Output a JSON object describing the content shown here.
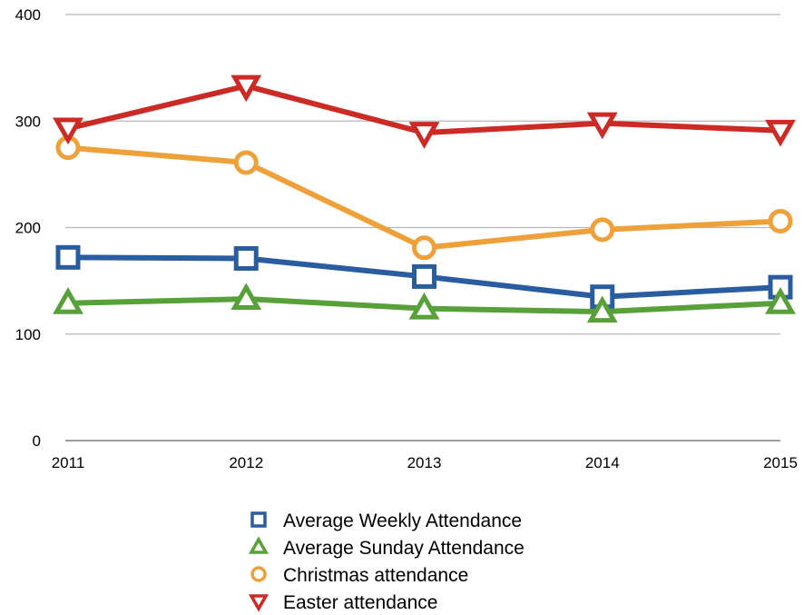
{
  "chart_data": {
    "type": "line",
    "title": "",
    "xlabel": "",
    "ylabel": "",
    "categories": [
      "2011",
      "2012",
      "2013",
      "2014",
      "2015"
    ],
    "ylim": [
      0,
      400
    ],
    "yticks": [
      "0",
      "100",
      "200",
      "300",
      "400"
    ],
    "grid": true,
    "legend_position": "bottom",
    "series": [
      {
        "name": "Average Weekly Attendance",
        "color": "#2a5d9f",
        "marker": "square",
        "values": [
          172,
          171,
          154,
          135,
          144
        ]
      },
      {
        "name": "Average Sunday Attendance",
        "color": "#58a13a",
        "marker": "triangle-up",
        "values": [
          129,
          133,
          124,
          121,
          129
        ]
      },
      {
        "name": "Christmas attendance",
        "color": "#eea13a",
        "marker": "circle",
        "values": [
          275,
          261,
          181,
          198,
          206
        ]
      },
      {
        "name": "Easter attendance",
        "color": "#cc2a25",
        "marker": "triangle-down",
        "values": [
          293,
          333,
          289,
          298,
          291
        ]
      }
    ]
  }
}
